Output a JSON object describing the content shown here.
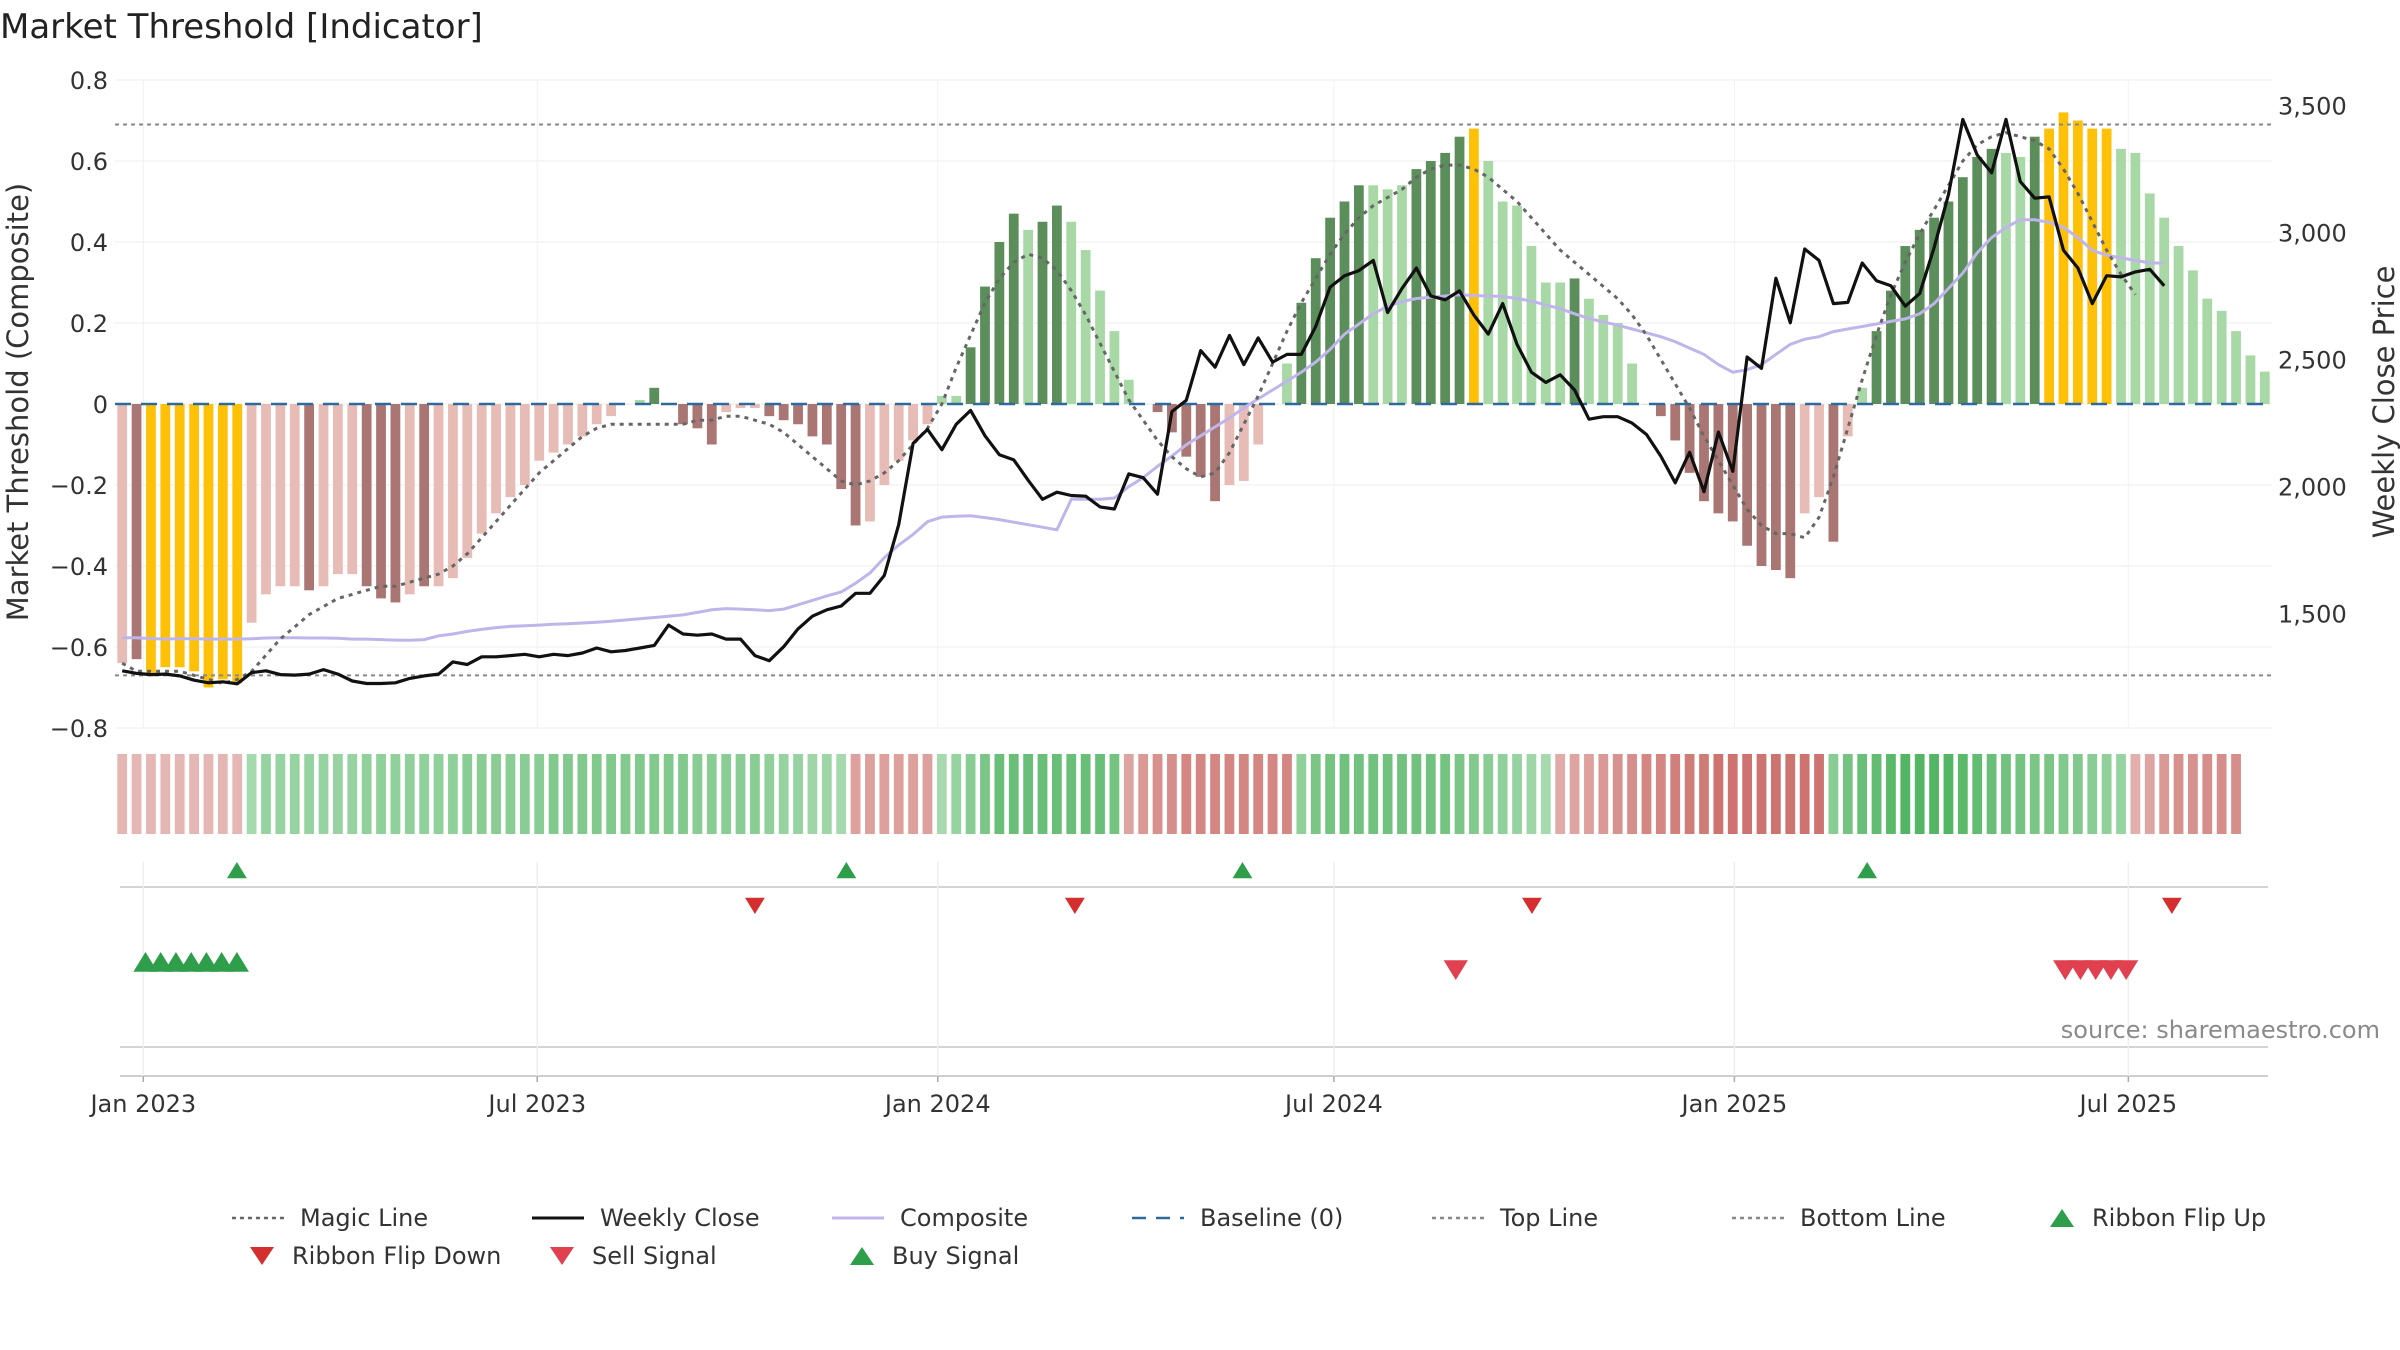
{
  "chart_data": {
    "type": "bar",
    "title": "Market Threshold [Indicator]",
    "ylabel": "Market Threshold (Composite)",
    "y2label": "Weekly Close Price",
    "ylim": [
      -0.8,
      0.8
    ],
    "y2lim": [
      1050,
      3600
    ],
    "yticks": [
      0.8,
      0.6,
      0.4,
      0.2,
      0,
      -0.2,
      -0.4,
      -0.6,
      -0.8
    ],
    "ytick_labels": [
      "0.8",
      "0.6",
      "0.4",
      "0.2",
      "0",
      "−0.2",
      "−0.4",
      "−0.6",
      "−0.8"
    ],
    "y2ticks": [
      3500,
      3000,
      2500,
      2000,
      1500
    ],
    "y2tick_labels": [
      "3,500",
      "3,000",
      "2,500",
      "2,000",
      "1,500"
    ],
    "x_start": "2022-12-19",
    "x_end": "2025-09-05",
    "x_ticks": [
      "2023-01-01",
      "2023-07-01",
      "2024-01-01",
      "2024-07-01",
      "2025-01-01",
      "2025-07-01"
    ],
    "x_tick_labels": [
      "Jan 2023",
      "Jul 2023",
      "Jan 2024",
      "Jul 2024",
      "Jan 2025",
      "Jul 2025"
    ],
    "grid": true,
    "legend_position": "bottom",
    "top_line": 0.69,
    "bottom_line": -0.67,
    "baseline": 0,
    "colors": {
      "dark_green": "#5b8e5b",
      "light_green": "#a8d8a6",
      "dark_red": "#a97674",
      "light_red": "#e8bcb6",
      "gold": "#ffc107",
      "weekly_close": "#111111",
      "composite": "#c0b5ea",
      "magic_line": "#666666",
      "baseline": "#2f6a9a",
      "ribbon_flip_up": "#2e9e4a",
      "ribbon_flip_down": "#d32f2f",
      "sell_signal": "#e0404f",
      "buy_signal": "#2e9e4a"
    },
    "bars": [
      [
        -0.64,
        "lr"
      ],
      [
        -0.63,
        "dr"
      ],
      [
        -0.67,
        "g"
      ],
      [
        -0.65,
        "g"
      ],
      [
        -0.65,
        "g"
      ],
      [
        -0.66,
        "g"
      ],
      [
        -0.7,
        "g"
      ],
      [
        -0.68,
        "g"
      ],
      [
        -0.69,
        "g"
      ],
      [
        -0.54,
        "lr"
      ],
      [
        -0.47,
        "lr"
      ],
      [
        -0.45,
        "lr"
      ],
      [
        -0.45,
        "lr"
      ],
      [
        -0.46,
        "dr"
      ],
      [
        -0.45,
        "lr"
      ],
      [
        -0.42,
        "lr"
      ],
      [
        -0.42,
        "lr"
      ],
      [
        -0.45,
        "dr"
      ],
      [
        -0.48,
        "dr"
      ],
      [
        -0.49,
        "dr"
      ],
      [
        -0.47,
        "lr"
      ],
      [
        -0.45,
        "dr"
      ],
      [
        -0.45,
        "lr"
      ],
      [
        -0.43,
        "lr"
      ],
      [
        -0.38,
        "lr"
      ],
      [
        -0.32,
        "lr"
      ],
      [
        -0.27,
        "lr"
      ],
      [
        -0.23,
        "lr"
      ],
      [
        -0.2,
        "lr"
      ],
      [
        -0.14,
        "lr"
      ],
      [
        -0.12,
        "lr"
      ],
      [
        -0.1,
        "lr"
      ],
      [
        -0.08,
        "lr"
      ],
      [
        -0.05,
        "lr"
      ],
      [
        -0.03,
        "lr"
      ],
      [
        0,
        "lr"
      ],
      [
        0.01,
        "lg"
      ],
      [
        0.04,
        "dg"
      ],
      [
        0,
        "lg"
      ],
      [
        -0.05,
        "dr"
      ],
      [
        -0.06,
        "dr"
      ],
      [
        -0.1,
        "dr"
      ],
      [
        -0.02,
        "lr"
      ],
      [
        -0.01,
        "lr"
      ],
      [
        -0.01,
        "lr"
      ],
      [
        -0.03,
        "dr"
      ],
      [
        -0.04,
        "dr"
      ],
      [
        -0.05,
        "dr"
      ],
      [
        -0.08,
        "dr"
      ],
      [
        -0.1,
        "dr"
      ],
      [
        -0.21,
        "dr"
      ],
      [
        -0.3,
        "dr"
      ],
      [
        -0.29,
        "lr"
      ],
      [
        -0.2,
        "lr"
      ],
      [
        -0.14,
        "lr"
      ],
      [
        -0.09,
        "lr"
      ],
      [
        -0.05,
        "lr"
      ],
      [
        0.02,
        "lg"
      ],
      [
        0.02,
        "lg"
      ],
      [
        0.14,
        "dg"
      ],
      [
        0.29,
        "dg"
      ],
      [
        0.4,
        "dg"
      ],
      [
        0.47,
        "dg"
      ],
      [
        0.43,
        "lg"
      ],
      [
        0.45,
        "dg"
      ],
      [
        0.49,
        "dg"
      ],
      [
        0.45,
        "lg"
      ],
      [
        0.38,
        "lg"
      ],
      [
        0.28,
        "lg"
      ],
      [
        0.18,
        "lg"
      ],
      [
        0.06,
        "lg"
      ],
      [
        0,
        "lg"
      ],
      [
        -0.02,
        "dr"
      ],
      [
        -0.07,
        "dr"
      ],
      [
        -0.13,
        "dr"
      ],
      [
        -0.18,
        "dr"
      ],
      [
        -0.24,
        "dr"
      ],
      [
        -0.2,
        "lr"
      ],
      [
        -0.19,
        "lr"
      ],
      [
        -0.1,
        "lr"
      ],
      [
        0,
        "lr"
      ],
      [
        0.1,
        "lg"
      ],
      [
        0.25,
        "dg"
      ],
      [
        0.36,
        "dg"
      ],
      [
        0.46,
        "dg"
      ],
      [
        0.5,
        "dg"
      ],
      [
        0.54,
        "dg"
      ],
      [
        0.54,
        "lg"
      ],
      [
        0.53,
        "lg"
      ],
      [
        0.54,
        "lg"
      ],
      [
        0.58,
        "dg"
      ],
      [
        0.6,
        "dg"
      ],
      [
        0.62,
        "dg"
      ],
      [
        0.66,
        "dg"
      ],
      [
        0.68,
        "g"
      ],
      [
        0.6,
        "lg"
      ],
      [
        0.5,
        "lg"
      ],
      [
        0.49,
        "lg"
      ],
      [
        0.39,
        "lg"
      ],
      [
        0.3,
        "lg"
      ],
      [
        0.3,
        "lg"
      ],
      [
        0.31,
        "dg"
      ],
      [
        0.26,
        "lg"
      ],
      [
        0.22,
        "lg"
      ],
      [
        0.2,
        "lg"
      ],
      [
        0.1,
        "lg"
      ],
      [
        0,
        "lg"
      ],
      [
        -0.03,
        "dr"
      ],
      [
        -0.09,
        "dr"
      ],
      [
        -0.17,
        "dr"
      ],
      [
        -0.24,
        "dr"
      ],
      [
        -0.27,
        "dr"
      ],
      [
        -0.29,
        "dr"
      ],
      [
        -0.35,
        "dr"
      ],
      [
        -0.4,
        "dr"
      ],
      [
        -0.41,
        "dr"
      ],
      [
        -0.43,
        "dr"
      ],
      [
        -0.27,
        "lr"
      ],
      [
        -0.23,
        "lr"
      ],
      [
        -0.34,
        "dr"
      ],
      [
        -0.08,
        "lr"
      ],
      [
        0.04,
        "lg"
      ],
      [
        0.18,
        "dg"
      ],
      [
        0.28,
        "dg"
      ],
      [
        0.39,
        "dg"
      ],
      [
        0.43,
        "dg"
      ],
      [
        0.46,
        "dg"
      ],
      [
        0.5,
        "dg"
      ],
      [
        0.56,
        "dg"
      ],
      [
        0.61,
        "dg"
      ],
      [
        0.63,
        "dg"
      ],
      [
        0.62,
        "lg"
      ],
      [
        0.61,
        "lg"
      ],
      [
        0.66,
        "dg"
      ],
      [
        0.68,
        "g"
      ],
      [
        0.72,
        "g"
      ],
      [
        0.7,
        "g"
      ],
      [
        0.68,
        "g"
      ],
      [
        0.68,
        "g"
      ],
      [
        0.63,
        "lg"
      ],
      [
        0.62,
        "lg"
      ],
      [
        0.52,
        "lg"
      ],
      [
        0.46,
        "lg"
      ],
      [
        0.39,
        "lg"
      ],
      [
        0.33,
        "lg"
      ],
      [
        0.26,
        "lg"
      ],
      [
        0.23,
        "lg"
      ],
      [
        0.18,
        "lg"
      ],
      [
        0.12,
        "lg"
      ],
      [
        0.08,
        "lg"
      ]
    ],
    "weekly_close": [
      1275,
      1265,
      1260,
      1262,
      1255,
      1238,
      1228,
      1232,
      1224,
      1268,
      1275,
      1260,
      1258,
      1262,
      1280,
      1262,
      1235,
      1225,
      1225,
      1228,
      1245,
      1255,
      1262,
      1310,
      1300,
      1330,
      1330,
      1335,
      1340,
      1330,
      1340,
      1335,
      1345,
      1365,
      1350,
      1355,
      1365,
      1375,
      1455,
      1420,
      1415,
      1420,
      1400,
      1400,
      1335,
      1315,
      1370,
      1440,
      1490,
      1515,
      1530,
      1580,
      1580,
      1650,
      1850,
      2170,
      2225,
      2145,
      2245,
      2300,
      2200,
      2125,
      2105,
      2025,
      1950,
      1978,
      1965,
      1962,
      1920,
      1912,
      2050,
      2035,
      1970,
      2295,
      2340,
      2535,
      2470,
      2595,
      2480,
      2585,
      2490,
      2520,
      2520,
      2630,
      2785,
      2830,
      2850,
      2890,
      2685,
      2780,
      2860,
      2750,
      2735,
      2770,
      2675,
      2600,
      2720,
      2560,
      2450,
      2410,
      2440,
      2380,
      2265,
      2275,
      2275,
      2250,
      2205,
      2120,
      2015,
      2135,
      1980,
      2215,
      2060,
      2510,
      2465,
      2820,
      2645,
      2935,
      2890,
      2720,
      2725,
      2880,
      2810,
      2790,
      2710,
      2760,
      2940,
      3150,
      3445,
      3305,
      3235,
      3445,
      3200,
      3135,
      3140,
      2930,
      2860,
      2720,
      2830,
      2825,
      2845,
      2855,
      2790
    ],
    "composite": [
      1405,
      1405,
      1402,
      1400,
      1402,
      1401,
      1400,
      1400,
      1400,
      1401,
      1404,
      1405,
      1405,
      1404,
      1404,
      1403,
      1400,
      1400,
      1398,
      1396,
      1395,
      1398,
      1413,
      1420,
      1430,
      1438,
      1445,
      1450,
      1452,
      1455,
      1458,
      1460,
      1463,
      1466,
      1470,
      1475,
      1480,
      1485,
      1490,
      1495,
      1505,
      1515,
      1520,
      1518,
      1515,
      1512,
      1518,
      1535,
      1552,
      1570,
      1585,
      1620,
      1660,
      1720,
      1770,
      1812,
      1862,
      1880,
      1883,
      1885,
      1878,
      1870,
      1860,
      1850,
      1840,
      1830,
      1950,
      1950,
      1950,
      1955,
      2000,
      2035,
      2080,
      2120,
      2165,
      2200,
      2235,
      2270,
      2310,
      2345,
      2380,
      2415,
      2450,
      2490,
      2540,
      2600,
      2640,
      2680,
      2710,
      2728,
      2740,
      2745,
      2750,
      2755,
      2752,
      2750,
      2748,
      2740,
      2730,
      2715,
      2700,
      2680,
      2662,
      2648,
      2635,
      2620,
      2605,
      2590,
      2570,
      2545,
      2520,
      2480,
      2450,
      2460,
      2480,
      2520,
      2560,
      2580,
      2590,
      2610,
      2620,
      2630,
      2640,
      2650,
      2660,
      2680,
      2720,
      2780,
      2840,
      2920,
      2980,
      3020,
      3050,
      3050,
      3040,
      3020,
      2980,
      2930,
      2910,
      2900,
      2890,
      2880,
      2880
    ],
    "magic": [
      -0.64,
      -0.66,
      -0.66,
      -0.66,
      -0.66,
      -0.67,
      -0.68,
      -0.69,
      -0.68,
      -0.66,
      -0.62,
      -0.58,
      -0.55,
      -0.52,
      -0.5,
      -0.48,
      -0.47,
      -0.46,
      -0.45,
      -0.45,
      -0.44,
      -0.43,
      -0.42,
      -0.4,
      -0.37,
      -0.33,
      -0.29,
      -0.25,
      -0.21,
      -0.17,
      -0.14,
      -0.11,
      -0.08,
      -0.06,
      -0.05,
      -0.05,
      -0.05,
      -0.05,
      -0.05,
      -0.05,
      -0.04,
      -0.04,
      -0.03,
      -0.03,
      -0.04,
      -0.05,
      -0.07,
      -0.1,
      -0.13,
      -0.16,
      -0.19,
      -0.2,
      -0.19,
      -0.17,
      -0.14,
      -0.1,
      -0.06,
      0,
      0.09,
      0.17,
      0.25,
      0.31,
      0.35,
      0.37,
      0.36,
      0.33,
      0.28,
      0.22,
      0.15,
      0.08,
      0.01,
      -0.04,
      -0.09,
      -0.13,
      -0.16,
      -0.18,
      -0.17,
      -0.12,
      -0.05,
      0.02,
      0.1,
      0.18,
      0.25,
      0.31,
      0.37,
      0.42,
      0.46,
      0.49,
      0.51,
      0.53,
      0.56,
      0.58,
      0.59,
      0.59,
      0.58,
      0.56,
      0.53,
      0.5,
      0.46,
      0.42,
      0.38,
      0.35,
      0.32,
      0.29,
      0.26,
      0.22,
      0.17,
      0.11,
      0.05,
      -0.01,
      -0.08,
      -0.14,
      -0.2,
      -0.26,
      -0.3,
      -0.32,
      -0.32,
      -0.33,
      -0.28,
      -0.18,
      -0.06,
      0.06,
      0.17,
      0.27,
      0.35,
      0.42,
      0.48,
      0.54,
      0.6,
      0.64,
      0.66,
      0.67,
      0.66,
      0.65,
      0.63,
      0.58,
      0.52,
      0.45,
      0.38,
      0.32,
      0.27
    ],
    "ribbon": [
      -0.3,
      -0.3,
      -0.3,
      -0.3,
      -0.3,
      -0.3,
      -0.3,
      -0.3,
      -0.3,
      0.35,
      0.45,
      0.45,
      0.45,
      0.45,
      0.45,
      0.45,
      0.45,
      0.5,
      0.5,
      0.5,
      0.5,
      0.5,
      0.5,
      0.5,
      0.55,
      0.55,
      0.55,
      0.55,
      0.55,
      0.55,
      0.6,
      0.6,
      0.6,
      0.6,
      0.6,
      0.6,
      0.6,
      0.6,
      0.6,
      0.6,
      0.55,
      0.55,
      0.55,
      0.55,
      0.55,
      0.5,
      0.45,
      0.45,
      0.4,
      0.4,
      0.35,
      -0.5,
      -0.5,
      -0.5,
      -0.5,
      -0.5,
      -0.5,
      0.35,
      0.45,
      0.55,
      0.65,
      0.8,
      0.8,
      0.8,
      0.8,
      0.8,
      0.8,
      0.8,
      0.8,
      0.7,
      -0.45,
      -0.55,
      -0.6,
      -0.65,
      -0.7,
      -0.7,
      -0.7,
      -0.7,
      -0.7,
      -0.7,
      -0.7,
      -0.7,
      0.5,
      0.65,
      0.7,
      0.75,
      0.75,
      0.75,
      0.75,
      0.75,
      0.75,
      0.75,
      0.7,
      0.65,
      0.6,
      0.55,
      0.5,
      0.45,
      0.4,
      0.35,
      -0.4,
      -0.45,
      -0.5,
      -0.55,
      -0.6,
      -0.65,
      -0.7,
      -0.7,
      -0.75,
      -0.8,
      -0.8,
      -0.85,
      -0.85,
      -0.85,
      -0.85,
      -0.85,
      -0.85,
      -0.85,
      -0.85,
      0.55,
      0.7,
      0.8,
      0.85,
      0.9,
      0.95,
      0.95,
      0.95,
      0.95,
      0.9,
      0.85,
      0.8,
      0.75,
      0.7,
      0.65,
      0.65,
      0.6,
      0.6,
      0.55,
      0.5,
      0.45,
      -0.35,
      -0.45,
      -0.55,
      -0.6,
      -0.6,
      -0.65,
      -0.65,
      -0.65
    ],
    "ribbon_flip_up": [
      "2023-02-13",
      "2023-11-20",
      "2024-05-20",
      "2025-03-03"
    ],
    "ribbon_flip_down": [
      "2023-10-09",
      "2024-03-04",
      "2024-09-30",
      "2025-07-21"
    ],
    "buy_signal": [
      "2023-01-02",
      "2023-01-09",
      "2023-01-16",
      "2023-01-23",
      "2023-01-30",
      "2023-02-06",
      "2023-02-13"
    ],
    "sell_signal": [
      "2024-08-26",
      "2025-06-02",
      "2025-06-09",
      "2025-06-16",
      "2025-06-23",
      "2025-06-30"
    ],
    "source": "source: sharemaestro.com"
  },
  "legend": [
    {
      "label": "Magic Line",
      "kind": "dotted",
      "color": "#666666"
    },
    {
      "label": "Weekly Close",
      "kind": "solid",
      "color": "#111111"
    },
    {
      "label": "Composite",
      "kind": "solid",
      "color": "#c0b5ea"
    },
    {
      "label": "Baseline (0)",
      "kind": "dashed",
      "color": "#2f6a9a"
    },
    {
      "label": "Top Line",
      "kind": "dotted",
      "color": "#888888"
    },
    {
      "label": "Bottom Line",
      "kind": "dotted",
      "color": "#888888"
    },
    {
      "label": "Ribbon Flip Up",
      "kind": "tri-up",
      "color": "#2e9e4a"
    },
    {
      "label": "Ribbon Flip Down",
      "kind": "tri-down",
      "color": "#d32f2f"
    },
    {
      "label": "Sell Signal",
      "kind": "tri-down",
      "color": "#e0404f"
    },
    {
      "label": "Buy Signal",
      "kind": "tri-up",
      "color": "#2e9e4a"
    }
  ]
}
